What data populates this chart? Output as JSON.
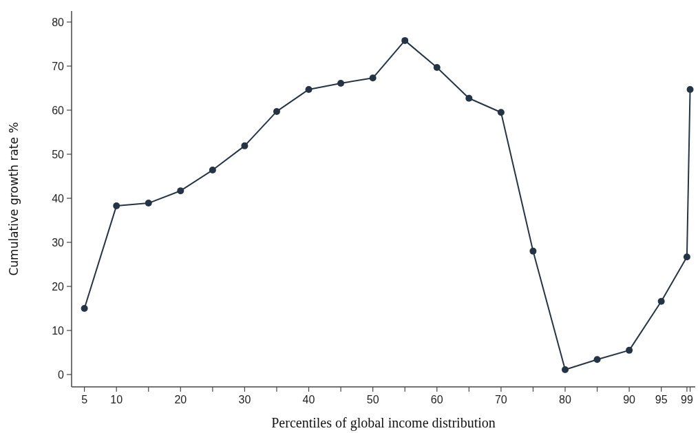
{
  "chart_data": {
    "type": "line",
    "xlabel": "Percentiles of global income distribution",
    "ylabel": "Cumulative growth rate %",
    "x": [
      5,
      10,
      15,
      20,
      25,
      30,
      35,
      40,
      45,
      50,
      55,
      60,
      65,
      70,
      75,
      80,
      85,
      90,
      95,
      99,
      99.5
    ],
    "series": [
      {
        "color": "#243445",
        "values": [
          15,
          38.3,
          38.9,
          41.7,
          46.4,
          51.9,
          59.7,
          64.7,
          66.1,
          67.3,
          75.8,
          69.7,
          62.7,
          59.5,
          28,
          1.1,
          3.4,
          5.5,
          16.6,
          26.7,
          64.7
        ]
      }
    ],
    "xlim": [
      3,
      100.3
    ],
    "ylim": [
      -2.8,
      82.5
    ],
    "xticks": [
      5,
      10,
      {
        "value": 15,
        "label": null
      },
      20,
      {
        "value": 25,
        "label": null
      },
      30,
      {
        "value": 35,
        "label": null
      },
      40,
      {
        "value": 45,
        "label": null
      },
      50,
      {
        "value": 55,
        "label": null
      },
      60,
      {
        "value": 65,
        "label": null
      },
      70,
      {
        "value": 75,
        "label": null
      },
      80,
      {
        "value": 85,
        "label": null
      },
      90,
      95,
      99,
      {
        "value": 99.5,
        "label": null
      }
    ],
    "yticks": [
      0,
      10,
      20,
      30,
      40,
      50,
      60,
      70,
      80
    ],
    "marker": "circle",
    "line_style": "solid",
    "grid": false
  }
}
